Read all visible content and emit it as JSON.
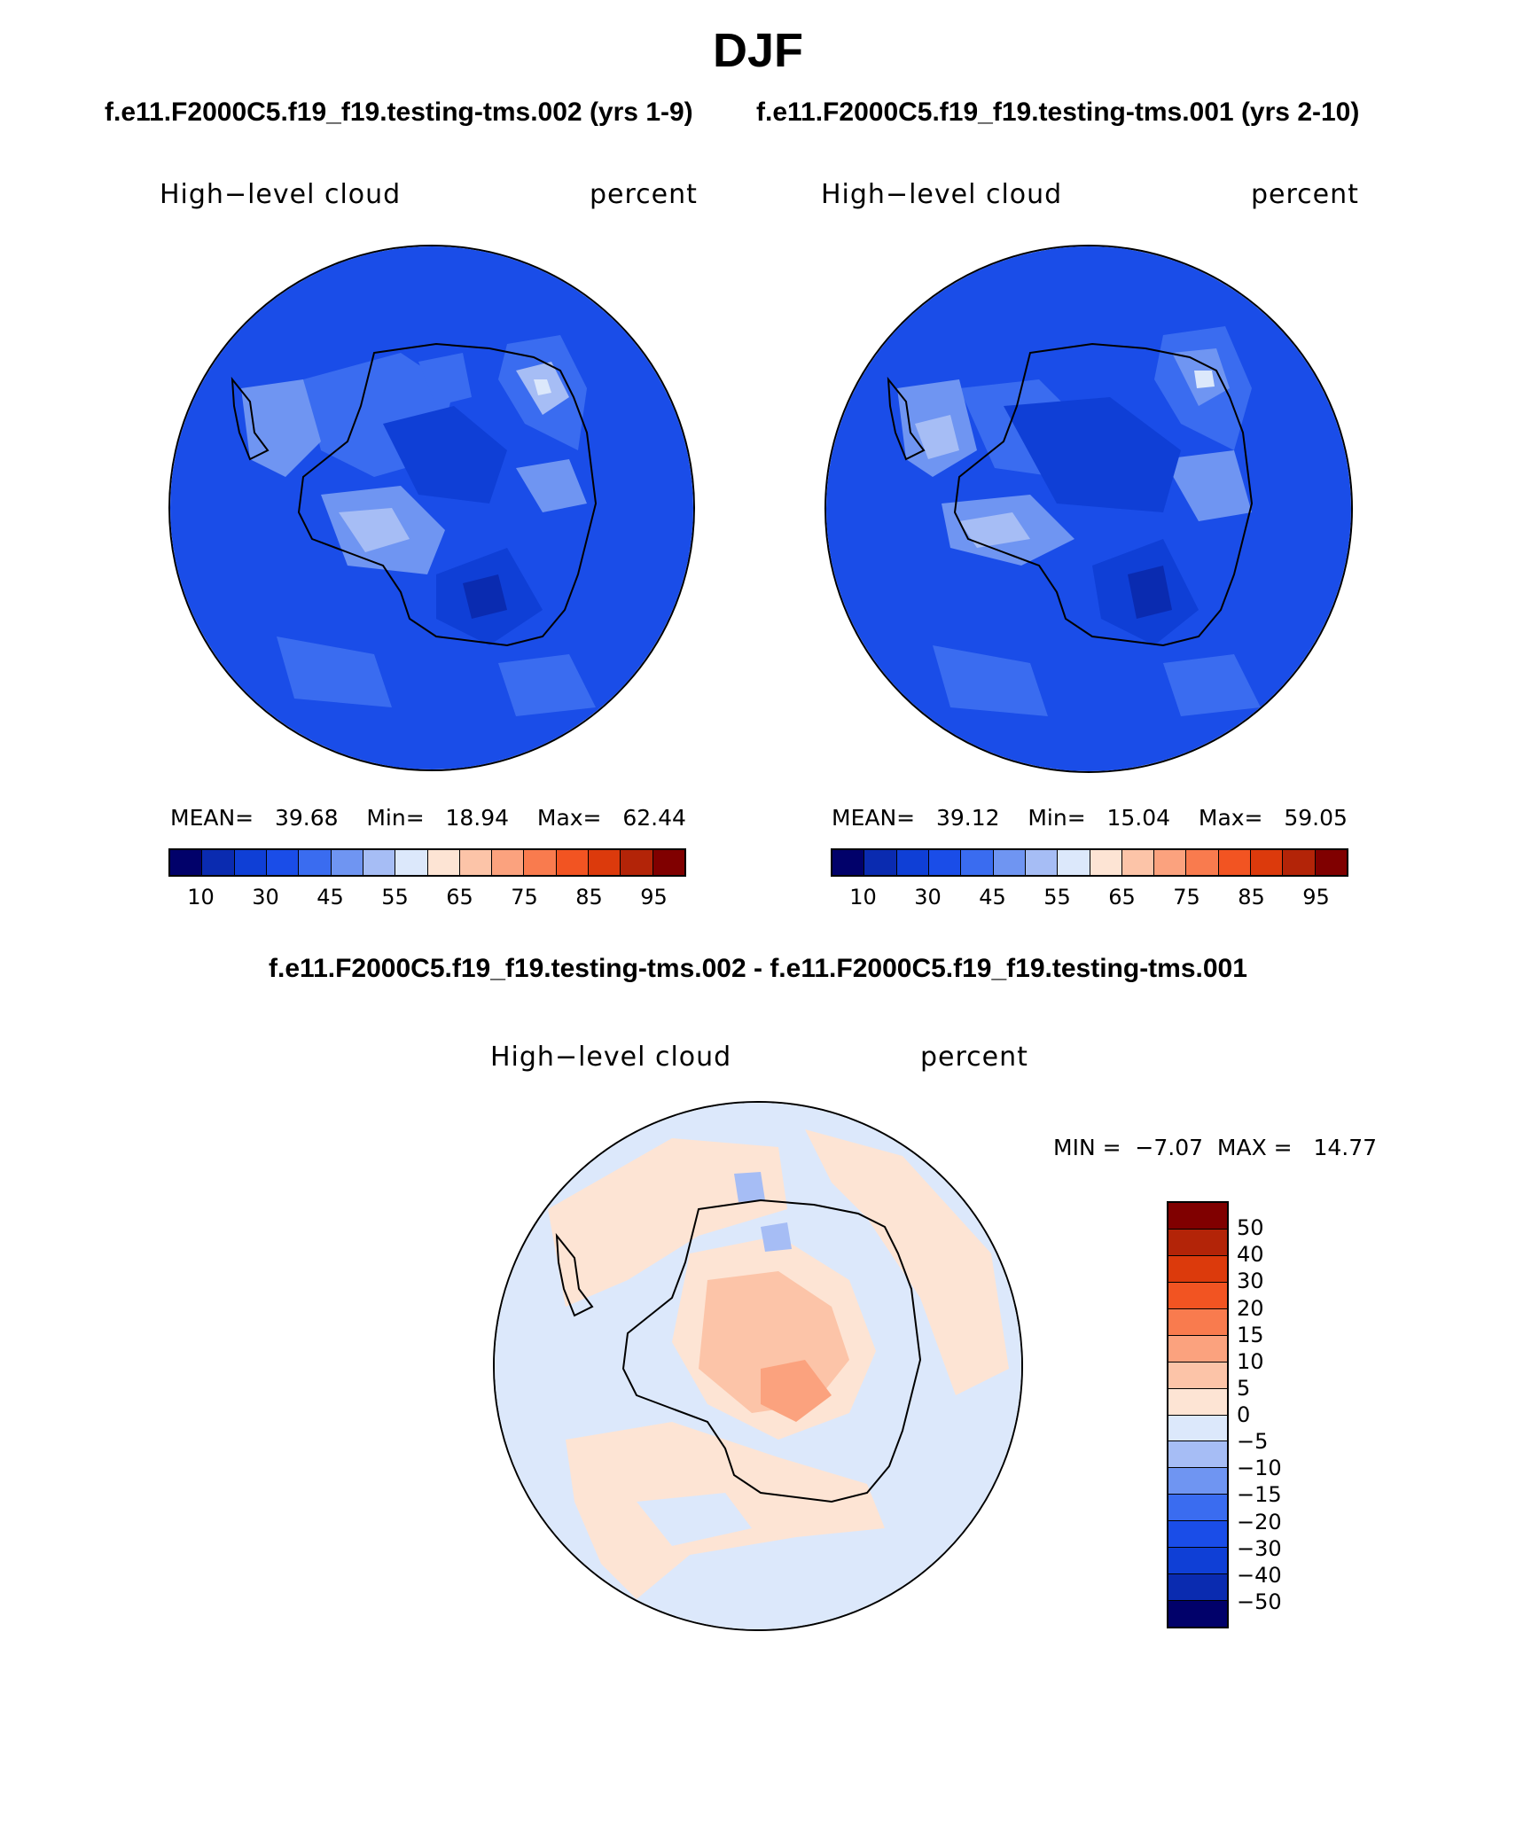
{
  "figure": {
    "title": "DJF",
    "case1_title": "f.e11.F2000C5.f19_f19.testing-tms.002 (yrs 1-9)",
    "case2_title": "f.e11.F2000C5.f19_f19.testing-tms.001 (yrs 2-10)",
    "diff_title": "f.e11.F2000C5.f19_f19.testing-tms.002 - f.e11.F2000C5.f19_f19.testing-tms.001"
  },
  "panels": [
    {
      "variable": "High−level cloud",
      "units": "percent",
      "mean_label": "MEAN=",
      "mean": "39.68",
      "min_label": "Min=",
      "min": "18.94",
      "max_label": "Max=",
      "max": "62.44"
    },
    {
      "variable": "High−level cloud",
      "units": "percent",
      "mean_label": "MEAN=",
      "mean": "39.12",
      "min_label": "Min=",
      "min": "15.04",
      "max_label": "Max=",
      "max": "59.05"
    }
  ],
  "diff_panel": {
    "variable": "High−level cloud",
    "units": "percent",
    "stats_text": "MIN =  −7.07  MAX =   14.77"
  },
  "colorbar_main": {
    "colors": [
      "#01016a",
      "#0a2bb0",
      "#0f3fd6",
      "#1a4de8",
      "#3a6cf0",
      "#6f95f2",
      "#a6bdf5",
      "#dce8fb",
      "#fde4d4",
      "#fcc4a8",
      "#fba27e",
      "#f97b4e",
      "#f25422",
      "#dc3a0c",
      "#b32408",
      "#800000"
    ],
    "tick_labels": [
      "10",
      "30",
      "45",
      "55",
      "65",
      "75",
      "85",
      "95"
    ]
  },
  "colorbar_diff": {
    "colors": [
      "#800000",
      "#b32408",
      "#dc3a0c",
      "#f25422",
      "#f97b4e",
      "#fba27e",
      "#fcc4a8",
      "#fde4d4",
      "#dce8fb",
      "#a6bdf5",
      "#6f95f2",
      "#3a6cf0",
      "#1a4de8",
      "#0f3fd6",
      "#0a2bb0",
      "#01016a"
    ],
    "tick_labels": [
      "50",
      "40",
      "30",
      "20",
      "15",
      "10",
      "5",
      "0",
      "−5",
      "−10",
      "−15",
      "−20",
      "−30",
      "−40",
      "−50"
    ]
  }
}
